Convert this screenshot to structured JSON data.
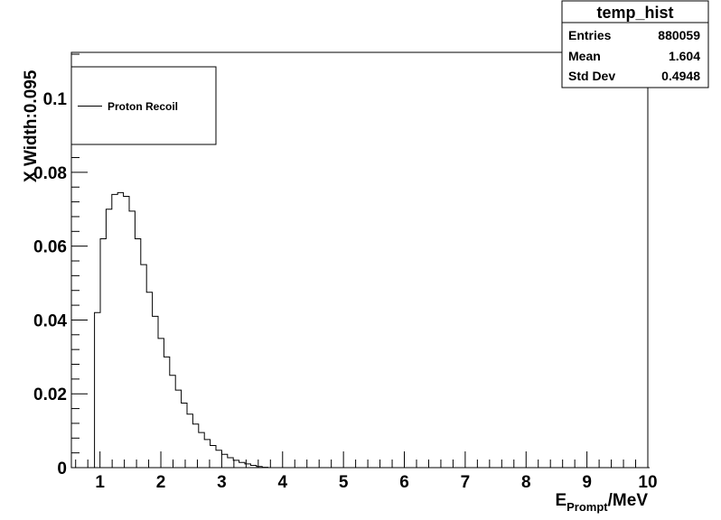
{
  "stats_box": {
    "title": "temp_hist",
    "rows": [
      {
        "label": "Entries",
        "value": "880059"
      },
      {
        "label": "Mean",
        "value": "1.604"
      },
      {
        "label": "Std Dev",
        "value": "0.4948"
      }
    ]
  },
  "legend": {
    "entries": [
      {
        "label": "Proton Recoil",
        "color": "#000000"
      }
    ]
  },
  "chart_data": {
    "type": "bar",
    "style": "step-histogram",
    "title": "",
    "xlabel": {
      "main": "E",
      "subscript": "Prompt",
      "suffix": "/MeV"
    },
    "ylabel": "X Width:0.095",
    "xlim": [
      0.53,
      10.0
    ],
    "ylim": [
      0,
      0.1125
    ],
    "grid": false,
    "legend_position": "top-left",
    "x_ticks": [
      1,
      2,
      3,
      4,
      5,
      6,
      7,
      8,
      9,
      10
    ],
    "x_tick_labels": [
      "1",
      "2",
      "3",
      "4",
      "5",
      "6",
      "7",
      "8",
      "9",
      "10"
    ],
    "y_ticks": [
      0,
      0.02,
      0.04,
      0.06,
      0.08,
      0.1
    ],
    "y_tick_labels": [
      "0",
      "0.02",
      "0.04",
      "0.06",
      "0.08",
      "0.1"
    ],
    "series": [
      {
        "name": "Proton Recoil",
        "bin_start": 0.53,
        "bin_width": 0.095,
        "values": [
          0,
          0,
          0,
          0,
          0.042,
          0.062,
          0.07,
          0.074,
          0.0745,
          0.0735,
          0.0695,
          0.062,
          0.055,
          0.0475,
          0.041,
          0.035,
          0.03,
          0.025,
          0.021,
          0.0175,
          0.0145,
          0.0118,
          0.0095,
          0.0076,
          0.006,
          0.0047,
          0.0036,
          0.0027,
          0.002,
          0.0014,
          0.001,
          0.0006,
          0.0003,
          0.0001,
          0,
          0,
          0,
          0,
          0,
          0,
          0,
          0,
          0,
          0,
          0,
          0,
          0,
          0,
          0,
          0,
          0,
          0,
          0,
          0,
          0,
          0,
          0,
          0,
          0,
          0,
          0,
          0,
          0,
          0,
          0,
          0,
          0,
          0,
          0,
          0,
          0,
          0,
          0,
          0,
          0,
          0,
          0,
          0,
          0,
          0,
          0,
          0,
          0,
          0,
          0,
          0,
          0,
          0,
          0,
          0,
          0,
          0,
          0,
          0,
          0,
          0,
          0,
          0,
          0,
          0
        ]
      }
    ]
  }
}
